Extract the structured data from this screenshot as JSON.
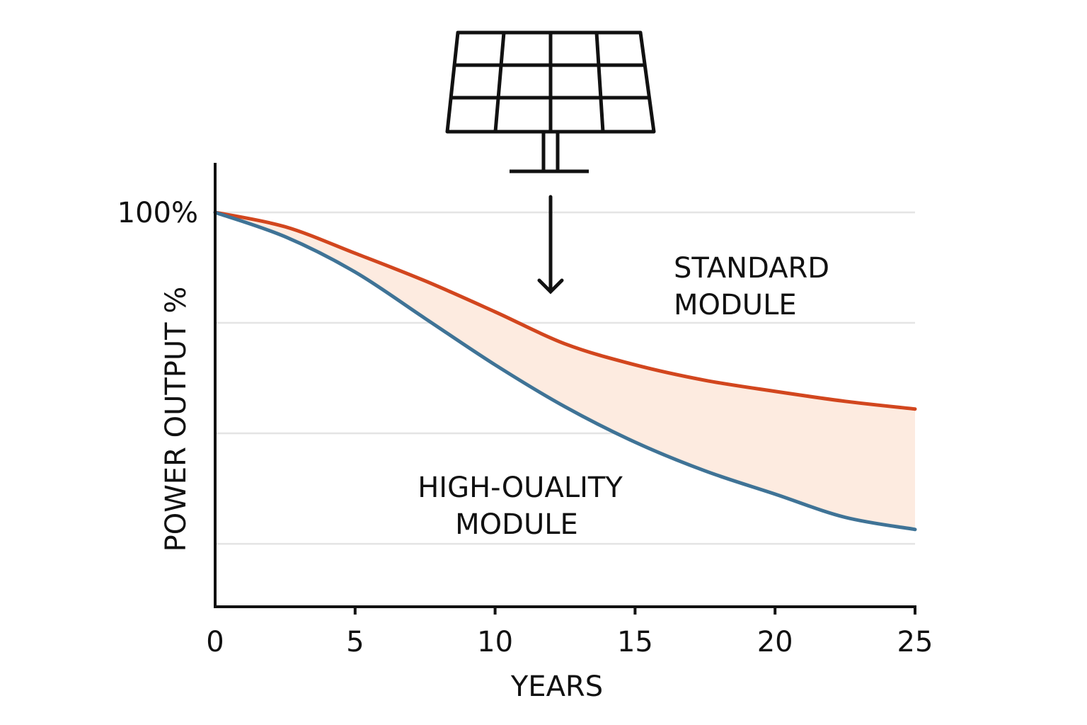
{
  "chart_data": {
    "type": "area",
    "title": "",
    "xlabel": "YEARS",
    "ylabel": "POWER OUTPUT %",
    "x_ticks": [
      "0",
      "5",
      "10",
      "15",
      "20",
      "25"
    ],
    "y_tick_label": "100%",
    "xlim": [
      0,
      25
    ],
    "ylim": [
      64.3,
      100
    ],
    "gridlines": [
      100,
      90,
      80,
      70
    ],
    "grid": true,
    "x": [
      0,
      2.5,
      5,
      7.5,
      10,
      12.5,
      15,
      17.5,
      20,
      22.5,
      25
    ],
    "series": [
      {
        "name": "STANDARD MODULE",
        "label_lines": [
          "STANDARD",
          "MODULE"
        ],
        "color": "#d2461e",
        "values": [
          100,
          98.7,
          96.3,
          93.8,
          91.0,
          88.1,
          86.2,
          84.8,
          83.8,
          82.9,
          82.2
        ]
      },
      {
        "name": "HIGH-OUALITY MODULE",
        "label_lines": [
          "HIGH-OUALITY",
          "MODULE"
        ],
        "color": "#3f7396",
        "values": [
          100,
          97.8,
          94.6,
          90.4,
          86.2,
          82.4,
          79.2,
          76.6,
          74.5,
          72.4,
          71.3
        ]
      }
    ],
    "fill_between_color": "#fdebe0",
    "annotation_icon": "solar-panel-icon with down-arrow-icon"
  }
}
